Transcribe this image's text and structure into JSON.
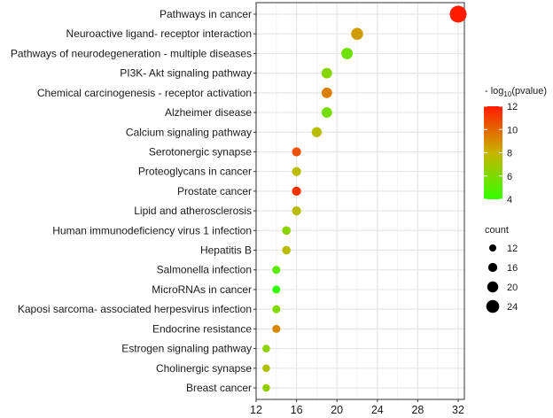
{
  "chart_data": {
    "type": "scatter",
    "title": "",
    "xlabel": "",
    "ylabel": "",
    "xlim": [
      12,
      32.5
    ],
    "xticks": [
      12,
      16,
      20,
      24,
      28,
      32
    ],
    "grid": true,
    "categories": [
      "Pathways in cancer",
      "Neuroactive ligand- receptor interaction",
      "Pathways of neurodegeneration -  multiple diseases",
      "PI3K- Akt signaling pathway",
      "Chemical carcinogenesis -  receptor activation",
      "Alzheimer disease",
      "Calcium signaling pathway",
      "Serotonergic synapse",
      "Proteoglycans in cancer",
      "Prostate cancer",
      "Lipid and atherosclerosis",
      "Human immunodeficiency virus 1 infection",
      "Hepatitis B",
      "Salmonella infection",
      "MicroRNAs in cancer",
      "Kaposi sarcoma- associated herpesvirus infection",
      "Endocrine resistance",
      "Estrogen signaling pathway",
      "Cholinergic synapse",
      "Breast cancer"
    ],
    "count": [
      32,
      22,
      21,
      19,
      19,
      19,
      18,
      16,
      16,
      16,
      16,
      15,
      15,
      14,
      14,
      14,
      14,
      13,
      13,
      13
    ],
    "neg_log10_pvalue": [
      12,
      8.6,
      5.6,
      6.2,
      9.4,
      5.8,
      7.6,
      10.6,
      7.6,
      11.4,
      7.6,
      6.4,
      7.6,
      5.0,
      4.0,
      6.0,
      9.2,
      6.4,
      7.4,
      6.6
    ],
    "color_legend": {
      "title_prefix": "- log",
      "title_sub": "10",
      "title_suffix": "(pvalue)",
      "range": [
        4,
        12
      ],
      "ticks": [
        "12",
        "10",
        "8",
        "6",
        "4"
      ],
      "low_color": "#33ff00",
      "mid_color": "#c8b400",
      "high_color": "#ff1a00"
    },
    "size_legend": {
      "title": "count",
      "values": [
        12,
        16,
        20,
        24
      ],
      "labels": [
        "12",
        "16",
        "20",
        "24"
      ]
    },
    "legend_position": "right"
  }
}
